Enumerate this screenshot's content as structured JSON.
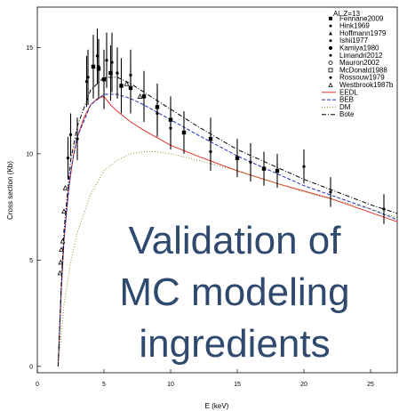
{
  "chart_data": {
    "type": "scatter",
    "xlabel": "E (keV)",
    "ylabel": "Cross section  (Kb)",
    "xlim": [
      0,
      27
    ],
    "ylim": [
      -0.3,
      16.9
    ],
    "xticks": [
      0,
      5,
      10,
      15,
      20,
      25
    ],
    "yticks": [
      0,
      5,
      10,
      15
    ],
    "grid": false,
    "legend_title": "Al, Z=13",
    "legend_position": "top-right",
    "overlay_lines": [
      "Validation of",
      "MC modeling",
      "ingredients"
    ],
    "colors": {
      "overlay": "#2f4a6e",
      "eedl": "#e8302a",
      "beb": "#1c2fb8",
      "dm": "#7a9a2e",
      "bote": "#000000",
      "points": "#000000"
    },
    "series": [
      {
        "name": "Fennane2009",
        "kind": "points",
        "marker": "square-filled",
        "x": [
          4.2,
          4.6,
          5.0,
          5.5,
          6.3,
          7.0,
          8.0,
          9.0,
          10.0,
          11.0,
          13.0,
          15.0,
          17.0,
          18.0
        ],
        "y": [
          14.1,
          14.0,
          13.5,
          13.8,
          13.2,
          13.1,
          12.7,
          12.2,
          11.6,
          11.0,
          10.7,
          9.8,
          9.3,
          9.2
        ],
        "err": [
          1.5,
          1.4,
          1.4,
          1.3,
          1.3,
          1.2,
          1.2,
          1.1,
          1.1,
          1.0,
          1.0,
          0.9,
          0.8,
          0.8
        ]
      },
      {
        "name": "Hink1969",
        "kind": "points",
        "marker": "dot",
        "x": [
          2.5,
          3.0,
          3.7,
          4.5,
          5.2,
          6.0,
          7.0,
          9.0,
          10.0,
          13.0,
          16.0,
          20.0,
          26.0
        ],
        "y": [
          10.9,
          10.7,
          13.4,
          14.6,
          14.4,
          13.8,
          13.7,
          11.9,
          11.2,
          10.1,
          9.6,
          9.4,
          7.4
        ],
        "err": [
          1.0,
          1.0,
          1.2,
          1.3,
          1.3,
          1.2,
          1.2,
          1.1,
          1.0,
          0.9,
          0.9,
          0.8,
          0.7
        ]
      },
      {
        "name": "Hoffmann1979",
        "kind": "points",
        "marker": "triangle-filled",
        "x": [],
        "y": [],
        "err": []
      },
      {
        "name": "Ishii1977",
        "kind": "points",
        "marker": "dot",
        "x": [
          22.0
        ],
        "y": [
          8.2
        ],
        "err": [
          0.7
        ]
      },
      {
        "name": "Kamiya1980",
        "kind": "points",
        "marker": "circle-filled",
        "x": [],
        "y": [],
        "err": []
      },
      {
        "name": "Limandri2012",
        "kind": "points",
        "marker": "dot",
        "x": [
          2.3,
          3.8,
          4.6,
          5.6
        ],
        "y": [
          9.8,
          13.6,
          14.1,
          14.3
        ],
        "err": [
          1.0,
          1.3,
          1.3,
          1.4
        ]
      },
      {
        "name": "Mauron2002",
        "kind": "points",
        "marker": "circle-open",
        "x": [],
        "y": [],
        "err": []
      },
      {
        "name": "McDonald1988",
        "kind": "points",
        "marker": "square-open",
        "x": [],
        "y": [],
        "err": []
      },
      {
        "name": "Rossouw1979",
        "kind": "points",
        "marker": "dot",
        "x": [],
        "y": [],
        "err": []
      },
      {
        "name": "Westbrook1987b",
        "kind": "points",
        "marker": "triangle-open",
        "x": [
          1.7,
          1.75,
          1.8,
          1.9,
          2.0,
          2.1,
          6.7,
          7.7
        ],
        "y": [
          4.4,
          4.9,
          5.5,
          5.9,
          7.3,
          8.4,
          13.3,
          12.7
        ],
        "err": [
          0,
          0,
          0,
          0,
          0,
          0,
          0,
          0
        ]
      },
      {
        "name": "EEDL",
        "kind": "line",
        "dash": "solid",
        "x": [
          1.56,
          1.8,
          2.0,
          2.3,
          2.7,
          3.0,
          3.5,
          4.0,
          4.5,
          5.0,
          5.5,
          6.0,
          7.0,
          8.0,
          10.0,
          12.0,
          15.0,
          18.0,
          22.0,
          27.0
        ],
        "y": [
          0.0,
          3.6,
          5.9,
          8.1,
          9.9,
          10.8,
          11.7,
          12.3,
          12.6,
          12.7,
          12.3,
          12.0,
          11.5,
          11.1,
          10.4,
          9.9,
          9.2,
          8.6,
          7.9,
          6.8
        ]
      },
      {
        "name": "BEB",
        "kind": "line",
        "dash": "dashed",
        "x": [
          1.56,
          1.8,
          2.0,
          2.5,
          3.0,
          4.0,
          5.0,
          6.0,
          7.0,
          8.0,
          10.0,
          12.0,
          15.0,
          20.0,
          25.0,
          27.0
        ],
        "y": [
          0.0,
          3.7,
          6.0,
          9.2,
          10.8,
          12.3,
          12.8,
          12.8,
          12.6,
          12.3,
          11.6,
          10.9,
          9.9,
          8.5,
          7.4,
          6.9
        ]
      },
      {
        "name": "DM",
        "kind": "line",
        "dash": "dotted",
        "x": [
          1.56,
          2.0,
          2.5,
          3.0,
          4.0,
          5.0,
          6.0,
          7.0,
          8.0,
          9.0,
          10.0,
          12.0,
          15.0,
          20.0,
          25.0,
          27.0
        ],
        "y": [
          0.0,
          2.9,
          4.9,
          6.3,
          8.1,
          9.2,
          9.7,
          10.0,
          10.1,
          10.1,
          10.0,
          9.7,
          9.2,
          8.2,
          7.4,
          7.0
        ]
      },
      {
        "name": "Bote",
        "kind": "line",
        "dash": "dashdot",
        "x": [
          1.56,
          1.8,
          2.0,
          2.5,
          3.0,
          4.0,
          5.0,
          6.0,
          7.0,
          8.0,
          10.0,
          12.0,
          15.0,
          20.0,
          25.0,
          27.0
        ],
        "y": [
          0.0,
          3.9,
          6.4,
          9.7,
          11.3,
          13.0,
          13.6,
          13.6,
          13.3,
          12.9,
          12.1,
          11.3,
          10.2,
          8.8,
          7.6,
          7.2
        ]
      }
    ]
  }
}
